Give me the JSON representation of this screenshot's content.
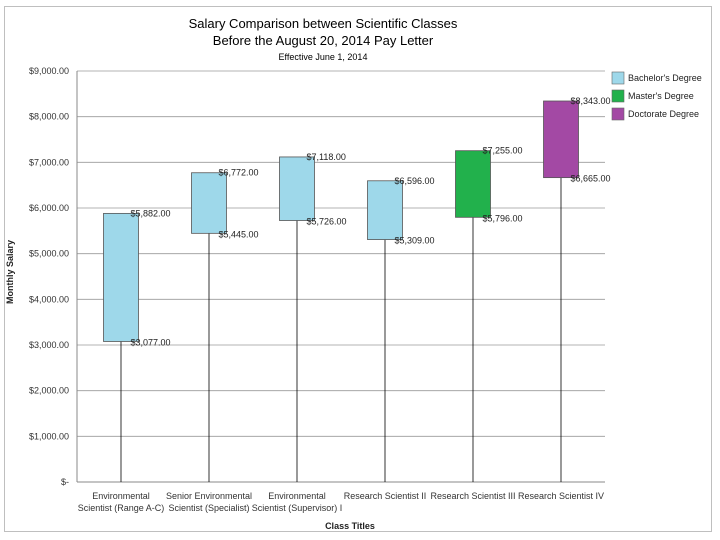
{
  "chart_data": {
    "type": "bar",
    "subtype": "floating-range",
    "title_lines": [
      "Salary Comparison between Scientific Classes",
      "Before the August 20, 2014 Pay Letter"
    ],
    "subtitle": "Effective June 1, 2014",
    "xlabel": "Class Titles",
    "ylabel": "Monthly Salary",
    "ylim": [
      0,
      9000
    ],
    "yticks": [
      {
        "value": 0,
        "label": "$-"
      },
      {
        "value": 1000,
        "label": "$1,000.00"
      },
      {
        "value": 2000,
        "label": "$2,000.00"
      },
      {
        "value": 3000,
        "label": "$3,000.00"
      },
      {
        "value": 4000,
        "label": "$4,000.00"
      },
      {
        "value": 5000,
        "label": "$5,000.00"
      },
      {
        "value": 6000,
        "label": "$6,000.00"
      },
      {
        "value": 7000,
        "label": "$7,000.00"
      },
      {
        "value": 8000,
        "label": "$8,000.00"
      },
      {
        "value": 9000,
        "label": "$9,000.00"
      }
    ],
    "grid": true,
    "legend_position": "right-top",
    "legend": [
      {
        "name": "Bachelor's Degree",
        "color": "#9ed8ea"
      },
      {
        "name": "Master's Degree",
        "color": "#22b14c"
      },
      {
        "name": "Doctorate Degree",
        "color": "#a349a4"
      }
    ],
    "categories": [
      {
        "label_lines": [
          "Environmental",
          "Scientist (Range A-C)"
        ],
        "low": 3077,
        "high": 5882,
        "low_label": "$3,077.00",
        "high_label": "$5,882.00",
        "degree": "Bachelor's Degree"
      },
      {
        "label_lines": [
          "Senior Environmental",
          "Scientist (Specialist)"
        ],
        "low": 5445,
        "high": 6772,
        "low_label": "$5,445.00",
        "high_label": "$6,772.00",
        "degree": "Bachelor's Degree"
      },
      {
        "label_lines": [
          "Environmental",
          "Scientist (Supervisor) I"
        ],
        "low": 5726,
        "high": 7118,
        "low_label": "$5,726.00",
        "high_label": "$7,118.00",
        "degree": "Bachelor's Degree"
      },
      {
        "label_lines": [
          "Research Scientist II"
        ],
        "low": 5309,
        "high": 6596,
        "low_label": "$5,309.00",
        "high_label": "$6,596.00",
        "degree": "Bachelor's Degree"
      },
      {
        "label_lines": [
          "Research Scientist III"
        ],
        "low": 5796,
        "high": 7255,
        "low_label": "$5,796.00",
        "high_label": "$7,255.00",
        "degree": "Master's Degree"
      },
      {
        "label_lines": [
          "Research Scientist IV"
        ],
        "low": 6665,
        "high": 8343,
        "low_label": "$6,665.00",
        "high_label": "$8,343.00",
        "degree": "Doctorate Degree"
      }
    ]
  }
}
